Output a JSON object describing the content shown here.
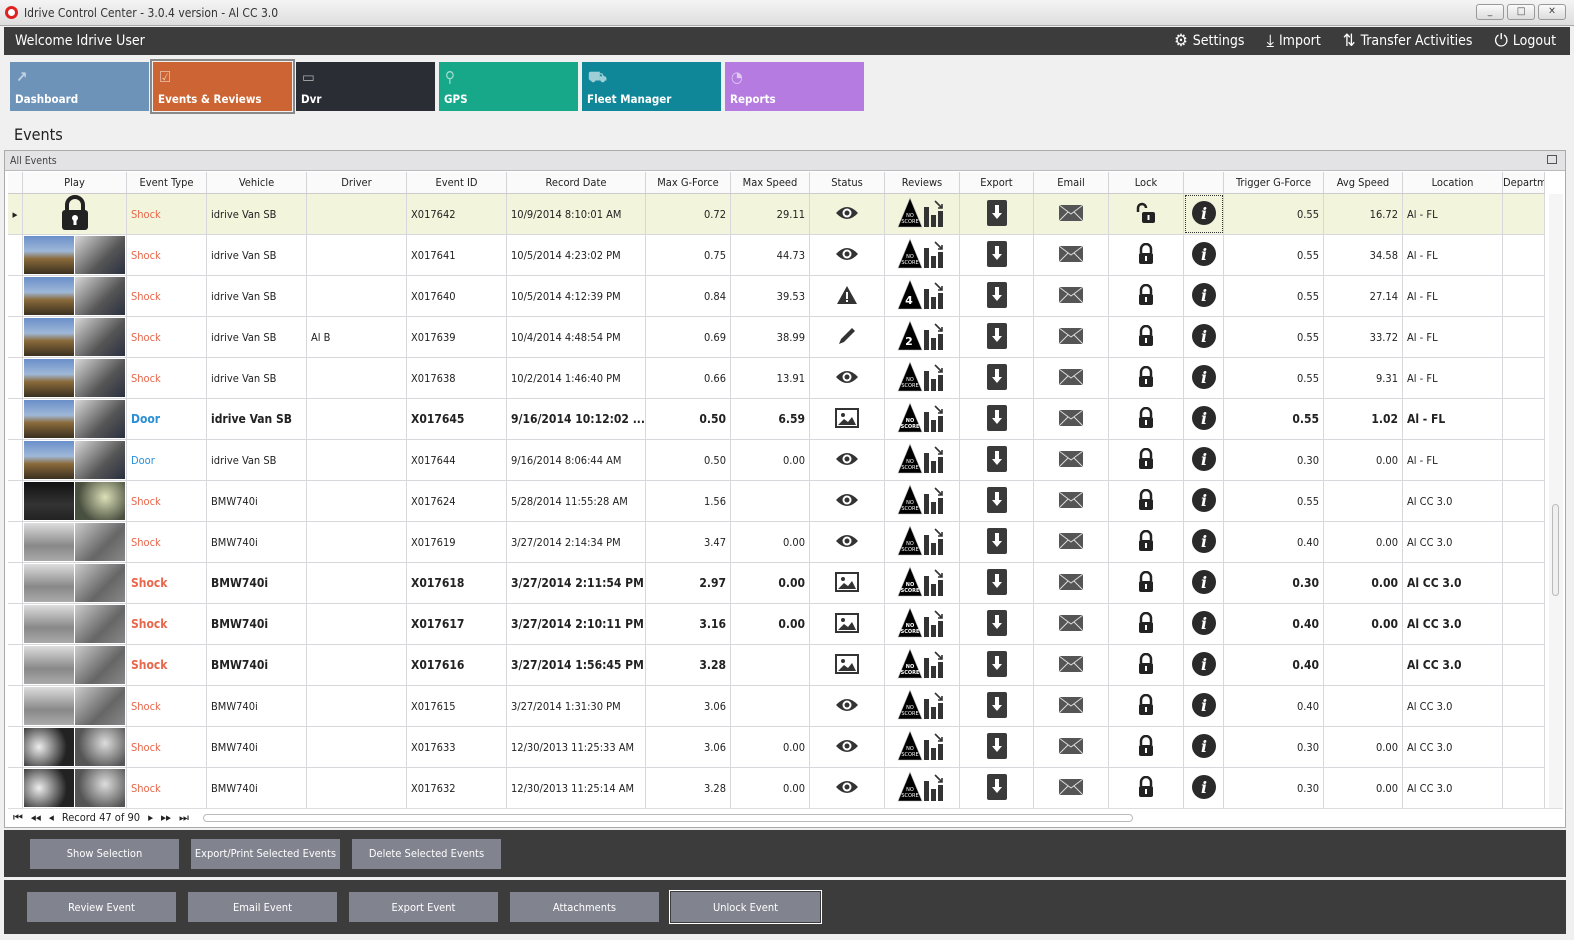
{
  "window": {
    "title": "Idrive Control Center - 3.0.4 version - Al CC 3.0",
    "minimize": "_",
    "maximize": "□",
    "close": "✕"
  },
  "topbar": {
    "welcome": "Welcome Idrive User",
    "actions": [
      {
        "label": "Settings",
        "icon": "gears-icon"
      },
      {
        "label": "Import",
        "icon": "download-icon"
      },
      {
        "label": "Transfer Activities",
        "icon": "transfer-icon"
      },
      {
        "label": "Logout",
        "icon": "power-icon"
      }
    ]
  },
  "tiles": [
    {
      "label": "Dashboard",
      "color": "#6e93b9"
    },
    {
      "label": "Events & Reviews",
      "color": "#cc6533",
      "selected": true
    },
    {
      "label": "Dvr",
      "color": "#2a2d33"
    },
    {
      "label": "GPS",
      "color": "#17a88a"
    },
    {
      "label": "Fleet Manager",
      "color": "#108799"
    },
    {
      "label": "Reports",
      "color": "#b57be0"
    }
  ],
  "page_title": "Events",
  "grid": {
    "group": "All Events",
    "columns": [
      "",
      "Play",
      "Event Type",
      "Vehicle",
      "Driver",
      "Event ID",
      "Record Date",
      "Max G-Force",
      "Max Speed",
      "Status",
      "Reviews",
      "Export",
      "Email",
      "Lock",
      "",
      "Trigger G-Force",
      "Avg Speed",
      "Location",
      "Departm"
    ],
    "rows": [
      {
        "thumb": "lock",
        "type": "Shock",
        "vehicle": "idrive Van SB",
        "driver": "",
        "id": "X017642",
        "date": "10/9/2014 8:10:01 AM",
        "maxg": "0.72",
        "maxs": "29.11",
        "status": "eye",
        "review": "NO SCORE",
        "lock": "unlocked",
        "trig": "0.55",
        "avg": "16.72",
        "loc": "Al - FL",
        "selected": true
      },
      {
        "thumb": "a",
        "type": "Shock",
        "vehicle": "idrive Van SB",
        "driver": "",
        "id": "X017641",
        "date": "10/5/2014 4:23:02 PM",
        "maxg": "0.75",
        "maxs": "44.73",
        "status": "eye",
        "review": "NO SCORE",
        "lock": "locked",
        "trig": "0.55",
        "avg": "34.58",
        "loc": "Al - FL"
      },
      {
        "thumb": "a",
        "type": "Shock",
        "vehicle": "idrive Van SB",
        "driver": "",
        "id": "X017640",
        "date": "10/5/2014 4:12:39 PM",
        "maxg": "0.84",
        "maxs": "39.53",
        "status": "warning",
        "review": "4",
        "lock": "locked",
        "trig": "0.55",
        "avg": "27.14",
        "loc": "Al - FL"
      },
      {
        "thumb": "a",
        "type": "Shock",
        "vehicle": "idrive Van SB",
        "driver": "Al B",
        "id": "X017639",
        "date": "10/4/2014 4:48:54 PM",
        "maxg": "0.69",
        "maxs": "38.99",
        "status": "pencil",
        "review": "2",
        "lock": "locked",
        "trig": "0.55",
        "avg": "33.72",
        "loc": "Al - FL"
      },
      {
        "thumb": "a",
        "type": "Shock",
        "vehicle": "idrive Van SB",
        "driver": "",
        "id": "X017638",
        "date": "10/2/2014 1:46:40 PM",
        "maxg": "0.66",
        "maxs": "13.91",
        "status": "eye",
        "review": "NO SCORE",
        "lock": "locked",
        "trig": "0.55",
        "avg": "9.31",
        "loc": "Al - FL"
      },
      {
        "thumb": "a",
        "type": "Door",
        "vehicle": "idrive Van SB",
        "driver": "",
        "id": "X017645",
        "date": "9/16/2014 10:12:02 ...",
        "maxg": "0.50",
        "maxs": "6.59",
        "status": "image",
        "review": "NO SCORE",
        "lock": "locked",
        "trig": "0.55",
        "avg": "1.02",
        "loc": "Al - FL",
        "bold": true
      },
      {
        "thumb": "a",
        "type": "Door",
        "vehicle": "idrive Van SB",
        "driver": "",
        "id": "X017644",
        "date": "9/16/2014 8:06:44 AM",
        "maxg": "0.50",
        "maxs": "0.00",
        "status": "eye",
        "review": "NO SCORE",
        "lock": "locked",
        "trig": "0.30",
        "avg": "0.00",
        "loc": "Al - FL"
      },
      {
        "thumb": "b",
        "type": "Shock",
        "vehicle": "BMW740i",
        "driver": "",
        "id": "X017624",
        "date": "5/28/2014 11:55:28 AM",
        "maxg": "1.56",
        "maxs": "",
        "status": "eye",
        "review": "NO SCORE",
        "lock": "locked",
        "trig": "0.55",
        "avg": "",
        "loc": "Al CC 3.0"
      },
      {
        "thumb": "c",
        "type": "Shock",
        "vehicle": "BMW740i",
        "driver": "",
        "id": "X017619",
        "date": "3/27/2014 2:14:34 PM",
        "maxg": "3.47",
        "maxs": "0.00",
        "status": "eye",
        "review": "NO SCORE",
        "lock": "locked",
        "trig": "0.40",
        "avg": "0.00",
        "loc": "Al CC 3.0"
      },
      {
        "thumb": "c",
        "type": "Shock",
        "vehicle": "BMW740i",
        "driver": "",
        "id": "X017618",
        "date": "3/27/2014 2:11:54 PM",
        "maxg": "2.97",
        "maxs": "0.00",
        "status": "image",
        "review": "NO SCORE",
        "lock": "locked",
        "trig": "0.30",
        "avg": "0.00",
        "loc": "Al CC 3.0",
        "bold": true
      },
      {
        "thumb": "c",
        "type": "Shock",
        "vehicle": "BMW740i",
        "driver": "",
        "id": "X017617",
        "date": "3/27/2014 2:10:11 PM",
        "maxg": "3.16",
        "maxs": "0.00",
        "status": "image",
        "review": "NO SCORE",
        "lock": "locked",
        "trig": "0.40",
        "avg": "0.00",
        "loc": "Al CC 3.0",
        "bold": true
      },
      {
        "thumb": "c",
        "type": "Shock",
        "vehicle": "BMW740i",
        "driver": "",
        "id": "X017616",
        "date": "3/27/2014 1:56:45 PM",
        "maxg": "3.28",
        "maxs": "",
        "status": "image",
        "review": "NO SCORE",
        "lock": "locked",
        "trig": "0.40",
        "avg": "",
        "loc": "Al CC 3.0",
        "bold": true
      },
      {
        "thumb": "c",
        "type": "Shock",
        "vehicle": "BMW740i",
        "driver": "",
        "id": "X017615",
        "date": "3/27/2014 1:31:30 PM",
        "maxg": "3.06",
        "maxs": "",
        "status": "eye",
        "review": "NO SCORE",
        "lock": "locked",
        "trig": "0.40",
        "avg": "",
        "loc": "Al CC 3.0"
      },
      {
        "thumb": "d",
        "type": "Shock",
        "vehicle": "BMW740i",
        "driver": "",
        "id": "X017633",
        "date": "12/30/2013 11:25:33 AM",
        "maxg": "3.06",
        "maxs": "0.00",
        "status": "eye",
        "review": "NO SCORE",
        "lock": "locked",
        "trig": "0.30",
        "avg": "0.00",
        "loc": "Al CC 3.0"
      },
      {
        "thumb": "d",
        "type": "Shock",
        "vehicle": "BMW740i",
        "driver": "",
        "id": "X017632",
        "date": "12/30/2013 11:25:14 AM",
        "maxg": "3.28",
        "maxs": "0.00",
        "status": "eye",
        "review": "NO SCORE",
        "lock": "locked",
        "trig": "0.30",
        "avg": "0.00",
        "loc": "Al CC 3.0"
      }
    ]
  },
  "pager": {
    "record": "Record 47 of 90",
    "first": "⏮",
    "prev_page": "◂◂",
    "prev": "◂",
    "next": "▸",
    "next_page": "▸▸",
    "last": "⏭"
  },
  "selection_buttons": [
    "Show Selection",
    "Export/Print Selected Events",
    "Delete Selected  Events"
  ],
  "event_buttons": [
    "Review Event",
    "Email Event",
    "Export Event",
    "Attachments",
    "Unlock Event"
  ],
  "colors": {
    "shock": "#e8664a",
    "door": "#2a8fd6",
    "selected_row": "#f3f4dc",
    "panel": "#3c3c3c",
    "button": "#81838f"
  }
}
